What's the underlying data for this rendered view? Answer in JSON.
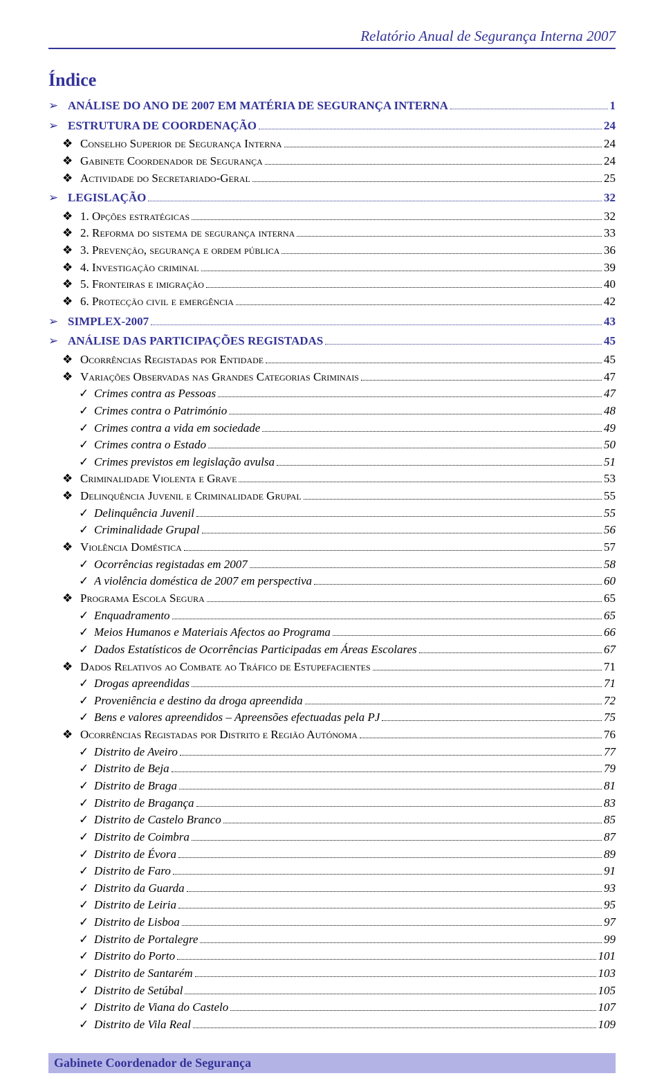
{
  "header": {
    "title": "Relatório Anual de Segurança Interna 2007"
  },
  "indice_title": "Índice",
  "colors": {
    "accent": "#333399",
    "footer_bg": "#b3b3e6",
    "text": "#000000",
    "background": "#ffffff"
  },
  "font": {
    "family": "Times New Roman",
    "base_size_pt": 12
  },
  "toc": [
    {
      "level": 0,
      "bullet": "arrow",
      "label": "ANÁLISE DO ANO DE 2007 EM MATÉRIA DE SEGURANÇA INTERNA",
      "page": "1"
    },
    {
      "level": 0,
      "bullet": "arrow",
      "label": "ESTRUTURA DE COORDENAÇÃO",
      "page": "24"
    },
    {
      "level": 1,
      "bullet": "diamond",
      "label": "Conselho Superior de Segurança Interna",
      "page": "24"
    },
    {
      "level": 1,
      "bullet": "diamond",
      "label": "Gabinete Coordenador de Segurança",
      "page": "24"
    },
    {
      "level": 1,
      "bullet": "diamond",
      "label": "Actividade do Secretariado-Geral",
      "page": "25"
    },
    {
      "level": 0,
      "bullet": "arrow",
      "label": "LEGISLAÇÃO",
      "page": "32"
    },
    {
      "level": 1,
      "bullet": "diamond",
      "label": "1. Opções estratégicas",
      "page": "32"
    },
    {
      "level": 1,
      "bullet": "diamond",
      "label": "2. Reforma do sistema de segurança interna",
      "page": "33"
    },
    {
      "level": 1,
      "bullet": "diamond",
      "label": "3. Prevenção, segurança e ordem pública",
      "page": "36"
    },
    {
      "level": 1,
      "bullet": "diamond",
      "label": "4. Investigação criminal",
      "page": "39"
    },
    {
      "level": 1,
      "bullet": "diamond",
      "label": "5. Fronteiras e imigração",
      "page": "40"
    },
    {
      "level": 1,
      "bullet": "diamond",
      "label": "6. Protecção civil e emergência",
      "page": "42"
    },
    {
      "level": 0,
      "bullet": "arrow",
      "label": "SIMPLEX-2007",
      "page": "43"
    },
    {
      "level": 0,
      "bullet": "arrow",
      "label": "ANÁLISE DAS PARTICIPAÇÕES REGISTADAS",
      "page": "45"
    },
    {
      "level": 1,
      "bullet": "diamond",
      "label": "Ocorrências Registadas por Entidade",
      "page": "45"
    },
    {
      "level": 1,
      "bullet": "diamond",
      "label": "Variações Observadas nas Grandes Categorias Criminais",
      "page": "47"
    },
    {
      "level": 2,
      "bullet": "check",
      "label": "Crimes contra as Pessoas",
      "page": "47"
    },
    {
      "level": 2,
      "bullet": "check",
      "label": "Crimes contra o Património",
      "page": "48"
    },
    {
      "level": 2,
      "bullet": "check",
      "label": "Crimes contra a vida em sociedade",
      "page": "49"
    },
    {
      "level": 2,
      "bullet": "check",
      "label": "Crimes contra o Estado",
      "page": "50"
    },
    {
      "level": 2,
      "bullet": "check",
      "label": "Crimes previstos em legislação avulsa",
      "page": "51"
    },
    {
      "level": 1,
      "bullet": "diamond",
      "label": "Criminalidade Violenta e Grave",
      "page": "53"
    },
    {
      "level": 1,
      "bullet": "diamond",
      "label": "Delinquência Juvenil e Criminalidade Grupal",
      "page": "55"
    },
    {
      "level": 2,
      "bullet": "check",
      "label": "Delinquência Juvenil",
      "page": "55"
    },
    {
      "level": 2,
      "bullet": "check",
      "label": "Criminalidade Grupal",
      "page": "56"
    },
    {
      "level": 1,
      "bullet": "diamond",
      "label": "Violência Doméstica",
      "page": "57"
    },
    {
      "level": 2,
      "bullet": "check",
      "label": "Ocorrências registadas em 2007",
      "page": "58"
    },
    {
      "level": 2,
      "bullet": "check",
      "label": "A violência doméstica de 2007 em perspectiva",
      "page": "60"
    },
    {
      "level": 1,
      "bullet": "diamond",
      "label": "Programa Escola Segura",
      "page": "65"
    },
    {
      "level": 2,
      "bullet": "check",
      "label": "Enquadramento",
      "page": "65"
    },
    {
      "level": 2,
      "bullet": "check",
      "label": "Meios Humanos e Materiais Afectos ao Programa",
      "page": "66"
    },
    {
      "level": 2,
      "bullet": "check",
      "label": "Dados Estatísticos de Ocorrências Participadas em Áreas Escolares",
      "page": "67"
    },
    {
      "level": 1,
      "bullet": "diamond",
      "label": "Dados Relativos ao Combate ao Tráfico de Estupefacientes",
      "page": "71"
    },
    {
      "level": 2,
      "bullet": "check",
      "label": "Drogas apreendidas",
      "page": "71"
    },
    {
      "level": 2,
      "bullet": "check",
      "label": "Proveniência e destino da droga apreendida",
      "page": "72"
    },
    {
      "level": 2,
      "bullet": "check",
      "label": "Bens e valores apreendidos – Apreensões efectuadas pela PJ",
      "page": "75"
    },
    {
      "level": 1,
      "bullet": "diamond",
      "label": "Ocorrências Registadas por Distrito e Região Autónoma",
      "page": "76"
    },
    {
      "level": 2,
      "bullet": "check",
      "label": "Distrito de Aveiro",
      "page": "77"
    },
    {
      "level": 2,
      "bullet": "check",
      "label": "Distrito de Beja",
      "page": "79"
    },
    {
      "level": 2,
      "bullet": "check",
      "label": "Distrito de Braga",
      "page": "81"
    },
    {
      "level": 2,
      "bullet": "check",
      "label": "Distrito de Bragança",
      "page": "83"
    },
    {
      "level": 2,
      "bullet": "check",
      "label": "Distrito de Castelo Branco",
      "page": "85"
    },
    {
      "level": 2,
      "bullet": "check",
      "label": "Distrito de Coimbra",
      "page": "87"
    },
    {
      "level": 2,
      "bullet": "check",
      "label": "Distrito de Évora",
      "page": "89"
    },
    {
      "level": 2,
      "bullet": "check",
      "label": "Distrito de Faro",
      "page": "91"
    },
    {
      "level": 2,
      "bullet": "check",
      "label": "Distrito da Guarda",
      "page": "93"
    },
    {
      "level": 2,
      "bullet": "check",
      "label": "Distrito de Leiria",
      "page": "95"
    },
    {
      "level": 2,
      "bullet": "check",
      "label": "Distrito de Lisboa",
      "page": "97"
    },
    {
      "level": 2,
      "bullet": "check",
      "label": "Distrito de Portalegre",
      "page": "99"
    },
    {
      "level": 2,
      "bullet": "check",
      "label": "Distrito do Porto",
      "page": "101"
    },
    {
      "level": 2,
      "bullet": "check",
      "label": "Distrito de Santarém",
      "page": "103"
    },
    {
      "level": 2,
      "bullet": "check",
      "label": "Distrito de Setúbal",
      "page": "105"
    },
    {
      "level": 2,
      "bullet": "check",
      "label": "Distrito de Viana do Castelo",
      "page": "107"
    },
    {
      "level": 2,
      "bullet": "check",
      "label": "Distrito de Vila Real",
      "page": "109"
    }
  ],
  "footer": {
    "text": "Gabinete Coordenador de Segurança"
  }
}
